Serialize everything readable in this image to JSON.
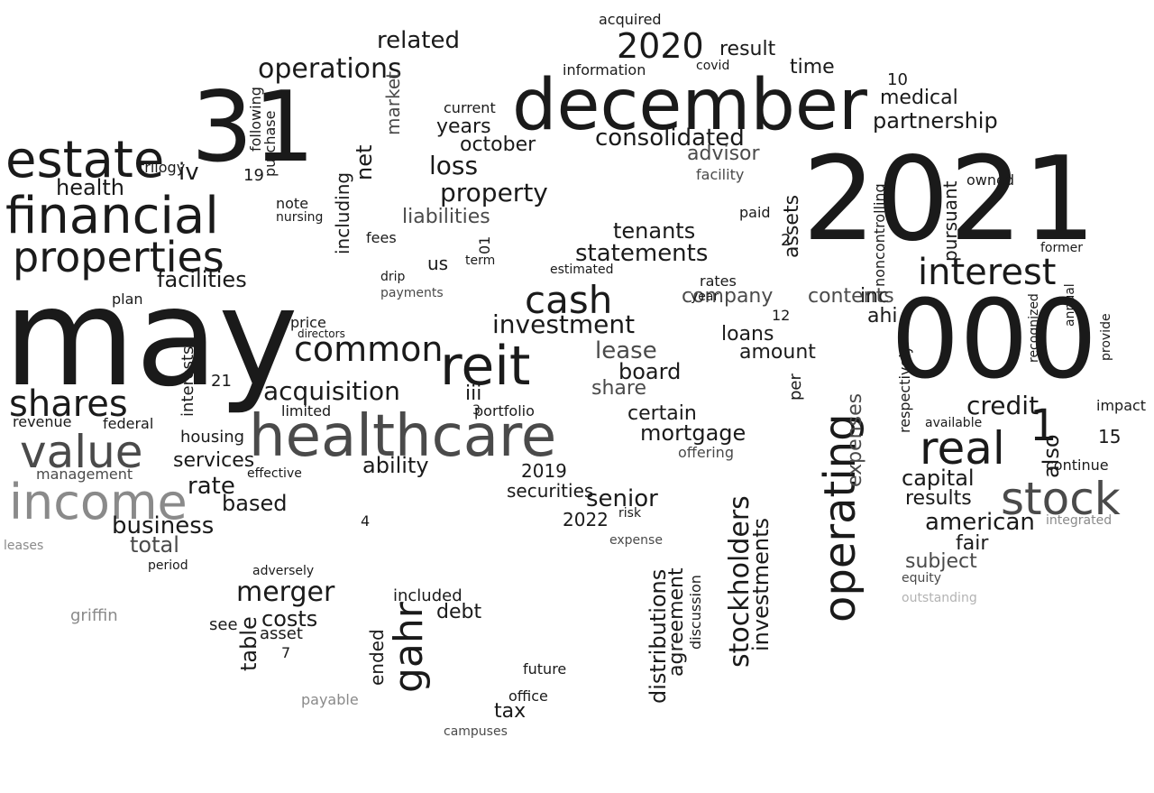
{
  "words": [
    {
      "text": "may"
    },
    {
      "text": "2021"
    },
    {
      "text": "000"
    },
    {
      "text": "december"
    },
    {
      "text": "31"
    },
    {
      "text": "healthcare"
    },
    {
      "text": "reit"
    },
    {
      "text": "financial"
    },
    {
      "text": "estate"
    },
    {
      "text": "properties"
    },
    {
      "text": "income"
    },
    {
      "text": "value"
    },
    {
      "text": "real"
    },
    {
      "text": "stock"
    },
    {
      "text": "interest"
    },
    {
      "text": "operating"
    },
    {
      "text": "1"
    },
    {
      "text": "cash"
    },
    {
      "text": "shares"
    },
    {
      "text": "common"
    },
    {
      "text": "acquisition"
    },
    {
      "text": "2020"
    },
    {
      "text": "consolidated"
    },
    {
      "text": "gahr"
    },
    {
      "text": "operations"
    },
    {
      "text": "related"
    },
    {
      "text": "investment"
    },
    {
      "text": "statements"
    },
    {
      "text": "property"
    },
    {
      "text": "loss"
    },
    {
      "text": "facilities"
    },
    {
      "text": "stockholders"
    },
    {
      "text": "investments"
    },
    {
      "text": "distributions"
    },
    {
      "text": "merger"
    },
    {
      "text": "costs"
    },
    {
      "text": "credit"
    },
    {
      "text": "partnership"
    },
    {
      "text": "american"
    },
    {
      "text": "subject"
    },
    {
      "text": "fair"
    },
    {
      "text": "senior"
    },
    {
      "text": "business"
    },
    {
      "text": "rate"
    },
    {
      "text": "services"
    },
    {
      "text": "based"
    },
    {
      "text": "total"
    },
    {
      "text": "health"
    },
    {
      "text": "ability"
    },
    {
      "text": "mortgage"
    },
    {
      "text": "certain"
    },
    {
      "text": "board"
    },
    {
      "text": "lease"
    },
    {
      "text": "share"
    },
    {
      "text": "tenants"
    },
    {
      "text": "liabilities"
    },
    {
      "text": "years"
    },
    {
      "text": "october"
    },
    {
      "text": "advisor"
    },
    {
      "text": "medical"
    },
    {
      "text": "inc"
    },
    {
      "text": "ahi"
    },
    {
      "text": "capital"
    },
    {
      "text": "results"
    },
    {
      "text": "also"
    },
    {
      "text": "expenses"
    },
    {
      "text": "contents"
    },
    {
      "text": "company"
    },
    {
      "text": "loans"
    },
    {
      "text": "amount"
    },
    {
      "text": "time"
    },
    {
      "text": "result"
    },
    {
      "text": "iii"
    },
    {
      "text": "us"
    },
    {
      "text": "net"
    },
    {
      "text": "including"
    },
    {
      "text": "market"
    },
    {
      "text": "2019"
    },
    {
      "text": "2022"
    },
    {
      "text": "securities"
    },
    {
      "text": "debt"
    },
    {
      "text": "ended"
    },
    {
      "text": "included"
    },
    {
      "text": "table"
    },
    {
      "text": "asset"
    },
    {
      "text": "see"
    },
    {
      "text": "griffin"
    },
    {
      "text": "tax"
    },
    {
      "text": "office"
    },
    {
      "text": "future"
    },
    {
      "text": "campuses"
    },
    {
      "text": "payable"
    },
    {
      "text": "agreement"
    },
    {
      "text": "discussion"
    },
    {
      "text": "pursuant"
    },
    {
      "text": "noncontrolling"
    },
    {
      "text": "available"
    },
    {
      "text": "impact"
    },
    {
      "text": "continue"
    },
    {
      "text": "equity"
    },
    {
      "text": "integrated"
    },
    {
      "text": "outstanding"
    },
    {
      "text": "owned"
    },
    {
      "text": "former"
    },
    {
      "text": "respectively"
    },
    {
      "text": "payments"
    },
    {
      "text": "drip"
    },
    {
      "text": "fees"
    },
    {
      "text": "estimated"
    },
    {
      "text": "term"
    },
    {
      "text": "rates"
    },
    {
      "text": "year"
    },
    {
      "text": "per"
    },
    {
      "text": "price"
    },
    {
      "text": "directors"
    },
    {
      "text": "limited"
    },
    {
      "text": "federal"
    },
    {
      "text": "revenue"
    },
    {
      "text": "management"
    },
    {
      "text": "interests"
    },
    {
      "text": "housing"
    },
    {
      "text": "effective"
    },
    {
      "text": "offering"
    },
    {
      "text": "expense"
    },
    {
      "text": "risk"
    },
    {
      "text": "leases"
    },
    {
      "text": "period"
    },
    {
      "text": "adversely"
    },
    {
      "text": "purchase"
    },
    {
      "text": "following"
    },
    {
      "text": "note"
    },
    {
      "text": "nursing"
    },
    {
      "text": "plan"
    },
    {
      "text": "trilogy"
    },
    {
      "text": "iv"
    },
    {
      "text": "portfolio"
    },
    {
      "text": "information"
    },
    {
      "text": "acquired"
    },
    {
      "text": "covid"
    },
    {
      "text": "current"
    },
    {
      "text": "facility"
    },
    {
      "text": "paid"
    },
    {
      "text": "assets"
    },
    {
      "text": "15"
    },
    {
      "text": "19"
    },
    {
      "text": "21"
    },
    {
      "text": "10"
    },
    {
      "text": "01"
    },
    {
      "text": "2"
    },
    {
      "text": "3"
    },
    {
      "text": "4"
    },
    {
      "text": "7"
    },
    {
      "text": "12"
    },
    {
      "text": "provide"
    },
    {
      "text": "recognized"
    },
    {
      "text": "annual"
    }
  ]
}
